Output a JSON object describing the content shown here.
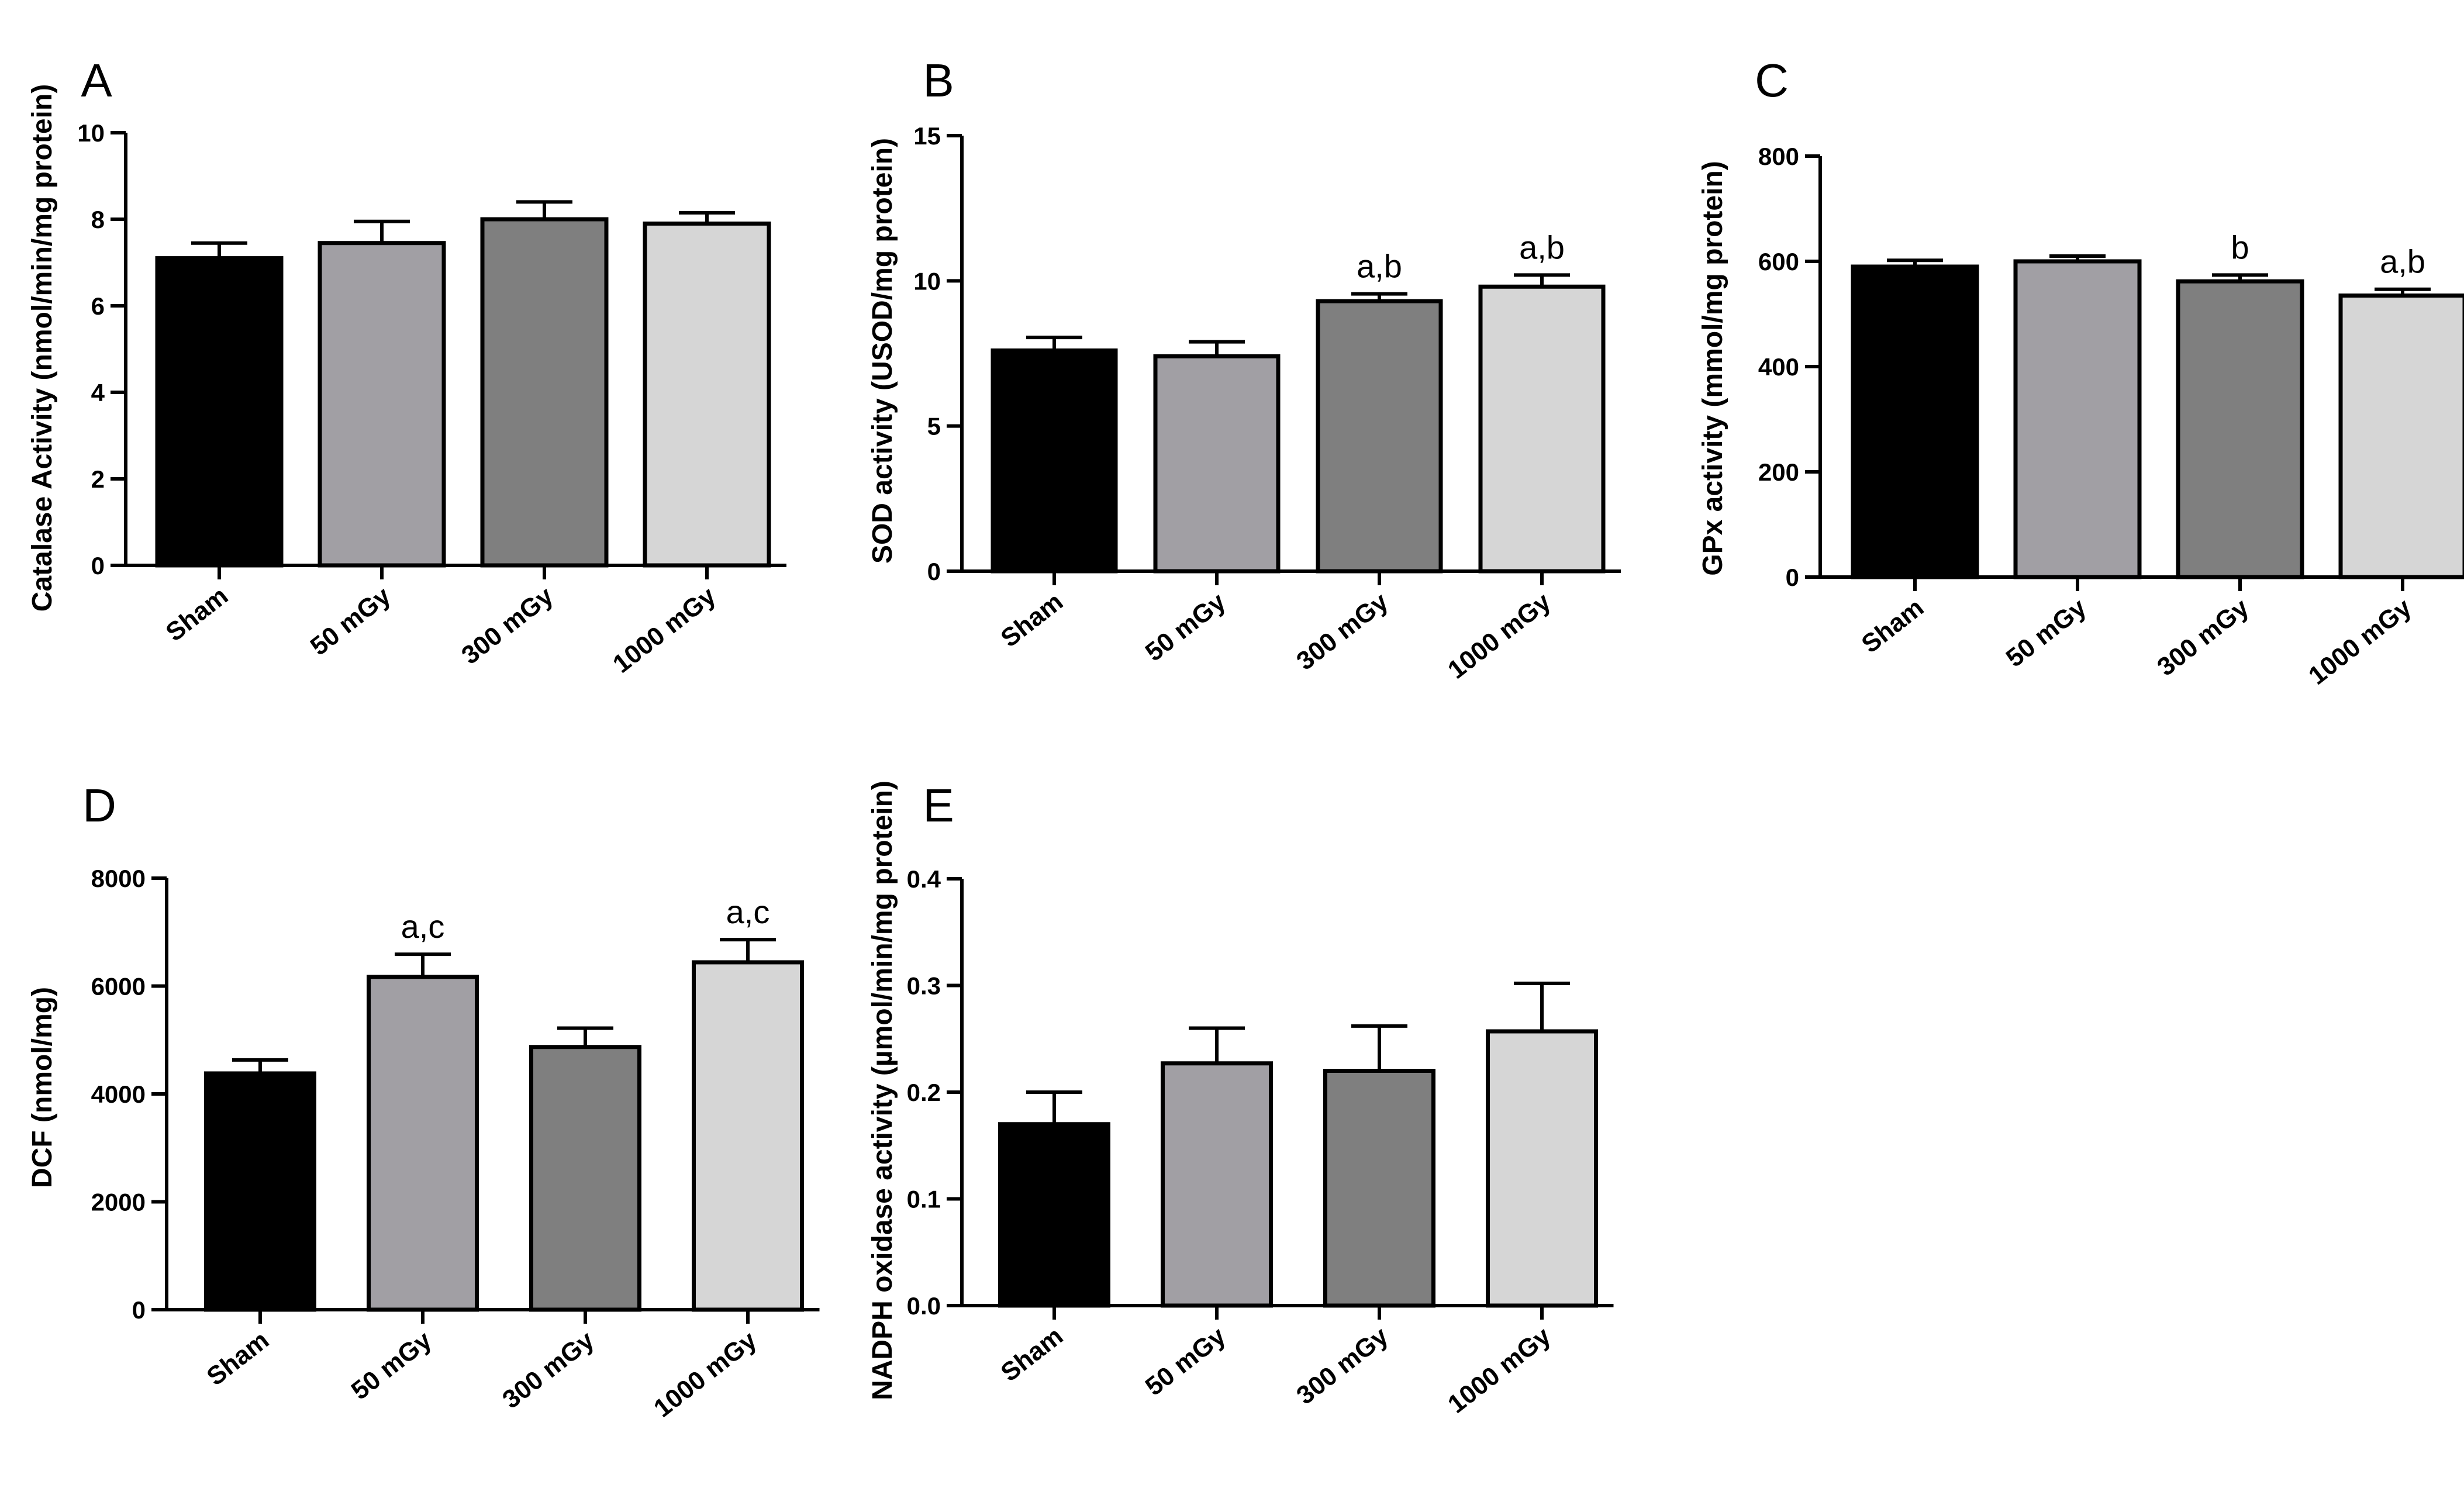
{
  "figure": {
    "bar_colors": [
      "#000000",
      "#a19fa4",
      "#7f7f7f",
      "#d6d6d6"
    ],
    "outline_color": "#000000"
  },
  "chart_data": [
    {
      "panel": "A",
      "type": "bar",
      "title": "",
      "xlabel": "",
      "ylabel": "Catalase Activity (nmol/min/mg protein)",
      "categories": [
        "Sham",
        "50 mGy",
        "300 mGy",
        "1000 mGy"
      ],
      "values": [
        7.1,
        7.45,
        8.0,
        7.9
      ],
      "errors": [
        0.35,
        0.5,
        0.4,
        0.25
      ],
      "annotations": [
        "",
        "",
        "",
        ""
      ],
      "ylim": [
        0,
        10
      ],
      "yticks": [
        0,
        2,
        4,
        6,
        8,
        10
      ],
      "ytick_labels": [
        "0",
        "2",
        "4",
        "6",
        "8",
        "10"
      ],
      "grid": false,
      "legend": "none"
    },
    {
      "panel": "B",
      "type": "bar",
      "title": "",
      "xlabel": "",
      "ylabel": "SOD activity (USOD/mg protein)",
      "categories": [
        "Sham",
        "50 mGy",
        "300 mGy",
        "1000 mGy"
      ],
      "values": [
        7.6,
        7.4,
        9.3,
        9.8
      ],
      "errors": [
        0.45,
        0.5,
        0.25,
        0.4
      ],
      "annotations": [
        "",
        "",
        "a,b",
        "a,b"
      ],
      "ylim": [
        0,
        15
      ],
      "yticks": [
        0,
        5,
        10,
        15
      ],
      "ytick_labels": [
        "0",
        "5",
        "10",
        "15"
      ],
      "grid": false,
      "legend": "none"
    },
    {
      "panel": "C",
      "type": "bar",
      "title": "",
      "xlabel": "",
      "ylabel": "GPx activity (mmol/mg protein)",
      "categories": [
        "Sham",
        "50 mGy",
        "300 mGy",
        "1000 mGy"
      ],
      "values": [
        590,
        600,
        562,
        535
      ],
      "errors": [
        12,
        10,
        12,
        12
      ],
      "annotations": [
        "",
        "",
        "b",
        "a,b"
      ],
      "ylim": [
        0,
        800
      ],
      "yticks": [
        0,
        200,
        400,
        600,
        800
      ],
      "ytick_labels": [
        "0",
        "200",
        "400",
        "600",
        "800"
      ],
      "grid": false,
      "legend": "none"
    },
    {
      "panel": "D",
      "type": "bar",
      "title": "",
      "xlabel": "",
      "ylabel": "DCF (nmol/mg)",
      "categories": [
        "Sham",
        "50 mGy",
        "300 mGy",
        "1000 mGy"
      ],
      "values": [
        4380,
        6170,
        4870,
        6440
      ],
      "errors": [
        250,
        420,
        350,
        420
      ],
      "annotations": [
        "",
        "a,c",
        "",
        "a,c"
      ],
      "ylim": [
        0,
        8000
      ],
      "yticks": [
        0,
        2000,
        4000,
        6000,
        8000
      ],
      "ytick_labels": [
        "0",
        "2000",
        "4000",
        "6000",
        "8000"
      ],
      "grid": false,
      "legend": "none"
    },
    {
      "panel": "E",
      "type": "bar",
      "title": "",
      "xlabel": "",
      "ylabel": "NADPH oxidase activity (µmol/min/mg protein)",
      "categories": [
        "Sham",
        "50 mGy",
        "300 mGy",
        "1000 mGy"
      ],
      "values": [
        0.17,
        0.227,
        0.22,
        0.257
      ],
      "errors": [
        0.03,
        0.033,
        0.042,
        0.045
      ],
      "annotations": [
        "",
        "",
        "",
        ""
      ],
      "ylim": [
        0,
        0.4
      ],
      "yticks": [
        0,
        0.1,
        0.2,
        0.3,
        0.4
      ],
      "ytick_labels": [
        "0.0",
        "0.1",
        "0.2",
        "0.3",
        "0.4"
      ],
      "grid": false,
      "legend": "none"
    }
  ]
}
